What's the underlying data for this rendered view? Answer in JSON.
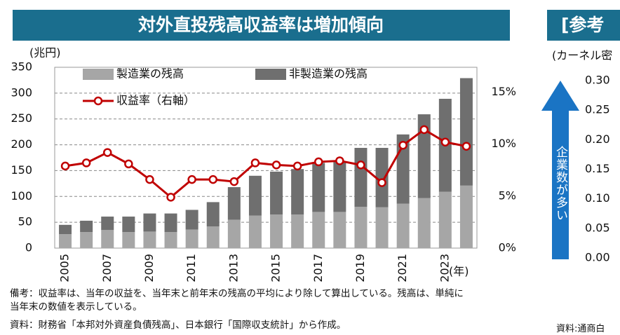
{
  "chart_data": [
    {
      "type": "bar_line",
      "title": "対外直投残高収益率は増加傾向",
      "ylabel": "(兆円)",
      "xlabel": "(年)",
      "categories": [
        "2005",
        null,
        "2007",
        null,
        "2009",
        null,
        "2011",
        null,
        "2013",
        null,
        "2015",
        null,
        "2017",
        null,
        "2019",
        null,
        "2021",
        null,
        "2023",
        null
      ],
      "series": [
        {
          "name": "製造業の残高",
          "color": "#a6a6a6",
          "values": [
            27,
            31,
            35,
            31,
            32,
            31,
            36,
            42,
            55,
            63,
            65,
            65,
            70,
            70,
            80,
            79,
            86,
            97,
            109,
            121
          ]
        },
        {
          "name": "非製造業の残高",
          "color": "#6f6f6f",
          "values": [
            18,
            22,
            26,
            30,
            35,
            36,
            38,
            47,
            63,
            77,
            83,
            88,
            95,
            98,
            114,
            115,
            134,
            162,
            180,
            208
          ]
        },
        {
          "name": "収益率（右軸）",
          "color": "#c00000",
          "axis": "y2",
          "values": [
            7.9,
            8.2,
            9.2,
            8.1,
            6.6,
            4.9,
            6.6,
            6.6,
            6.4,
            8.2,
            8.0,
            7.9,
            8.3,
            8.4,
            8.0,
            6.3,
            9.9,
            11.4,
            10.2,
            9.8
          ]
        }
      ],
      "ylim": [
        0,
        350
      ],
      "yticks": [
        0,
        50,
        100,
        150,
        200,
        250,
        300,
        350
      ],
      "y2lim": [
        0,
        17.4
      ],
      "y2ticks": [
        {
          "value": 0,
          "label": "0%"
        },
        {
          "value": 5,
          "label": "5%"
        },
        {
          "value": 10,
          "label": "10%"
        },
        {
          "value": 15,
          "label": "15%"
        }
      ],
      "grid": true,
      "legend": "top-left",
      "notes": "備考：収益率は、当年の収益を、当年末と前年末の残高の平均により除して算出している。残高は、単純に当年末の数値を表示している。",
      "source": "資料：財務省「本邦対外資産負債残高」、日本銀行「国際収支統計」から作成。"
    },
    {
      "type": "partial",
      "title": "[参考",
      "ylabel": "(カーネル密",
      "ylim": [
        0,
        0.3
      ],
      "yticks": [
        {
          "value": 0,
          "label": "0.00"
        },
        {
          "value": 0.05,
          "label": "0.05"
        },
        {
          "value": 0.1,
          "label": "0.10"
        },
        {
          "value": 0.15,
          "label": "0.15"
        },
        {
          "value": 0.2,
          "label": "0.20"
        },
        {
          "value": 0.25,
          "label": "0.25"
        },
        {
          "value": 0.3,
          "label": "0.30"
        }
      ],
      "annotation": "企業数が多い",
      "source": "資料:通商白"
    }
  ]
}
